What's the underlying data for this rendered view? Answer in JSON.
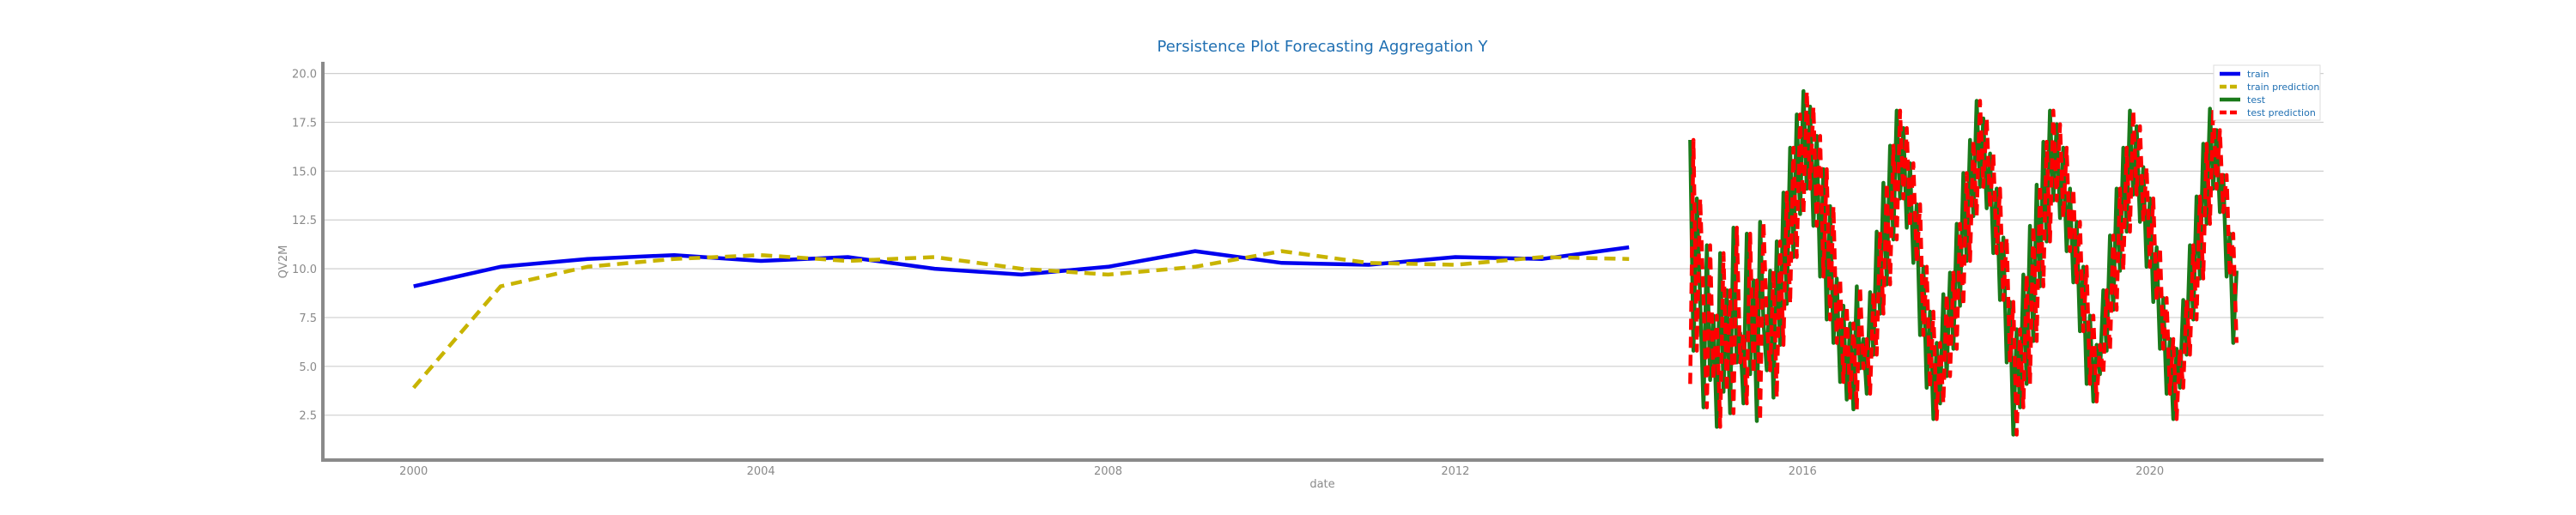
{
  "chart_data": {
    "type": "line",
    "title": "Persistence Plot Forecasting Aggregation Y",
    "xlabel": "date",
    "ylabel": "QV2M",
    "x_type": "date",
    "xlim": [
      "1998-12-15",
      "2022-01-01"
    ],
    "ylim": [
      0.2,
      20.6
    ],
    "x_ticks": [
      {
        "value": "2000-01-01",
        "label": "2000"
      },
      {
        "value": "2004-01-01",
        "label": "2004"
      },
      {
        "value": "2008-01-01",
        "label": "2008"
      },
      {
        "value": "2012-01-01",
        "label": "2012"
      },
      {
        "value": "2016-01-01",
        "label": "2016"
      },
      {
        "value": "2020-01-01",
        "label": "2020"
      }
    ],
    "y_ticks": [
      2.5,
      5.0,
      7.5,
      10.0,
      12.5,
      15.0,
      17.5,
      20.0
    ],
    "y_tick_labels": [
      "2.5",
      "5.0",
      "7.5",
      "10.0",
      "12.5",
      "15.0",
      "17.5",
      "20.0"
    ],
    "grid": "horizontal",
    "legend_position": "top-right",
    "series": [
      {
        "name": "train",
        "color": "#0000ee",
        "style": "solid",
        "x": [
          "2000-01-01",
          "2001-01-01",
          "2002-01-01",
          "2003-01-01",
          "2004-01-01",
          "2005-01-01",
          "2006-01-01",
          "2007-01-01",
          "2008-01-01",
          "2009-01-01",
          "2010-01-01",
          "2011-01-01",
          "2012-01-01",
          "2013-01-01",
          "2014-01-01"
        ],
        "y": [
          9.1,
          10.1,
          10.5,
          10.7,
          10.4,
          10.6,
          10.0,
          9.7,
          10.1,
          10.9,
          10.3,
          10.2,
          10.6,
          10.5,
          11.1
        ]
      },
      {
        "name": "train prediction",
        "color": "#c8b400",
        "style": "dashed",
        "x": [
          "2000-01-01",
          "2001-01-01",
          "2002-01-01",
          "2003-01-01",
          "2004-01-01",
          "2005-01-01",
          "2006-01-01",
          "2007-01-01",
          "2008-01-01",
          "2009-01-01",
          "2010-01-01",
          "2011-01-01",
          "2012-01-01",
          "2013-01-01",
          "2014-01-01"
        ],
        "y": [
          3.9,
          9.1,
          10.1,
          10.5,
          10.7,
          10.4,
          10.6,
          10.0,
          9.7,
          10.1,
          10.9,
          10.3,
          10.2,
          10.6,
          10.5
        ]
      },
      {
        "name": "test",
        "color": "#1a7a1a",
        "style": "solid",
        "x_start": "2014-09-15",
        "x_end": "2020-12-31",
        "y": [
          16.6,
          5.8,
          13.6,
          8.4,
          2.9,
          11.2,
          4.3,
          7.6,
          1.9,
          10.8,
          3.7,
          8.9,
          2.6,
          12.1,
          5.2,
          6.7,
          3.1,
          11.8,
          4.6,
          9.4,
          2.2,
          12.4,
          7.3,
          4.8,
          9.9,
          3.4,
          11.4,
          6.1,
          13.9,
          8.2,
          16.2,
          10.6,
          17.9,
          12.8,
          19.1,
          14.1,
          18.3,
          12.2,
          16.8,
          9.6,
          15.1,
          7.4,
          13.2,
          6.2,
          9.5,
          4.2,
          8.1,
          3.3,
          7.2,
          2.8,
          9.1,
          4.9,
          6.4,
          3.6,
          8.8,
          5.6,
          11.9,
          7.7,
          14.4,
          9.2,
          16.3,
          11.5,
          18.1,
          13.6,
          17.2,
          12.1,
          15.4,
          10.3,
          13.3,
          6.6,
          10.1,
          3.9,
          7.8,
          2.3,
          6.2,
          3.1,
          8.7,
          4.5,
          9.8,
          5.9,
          12.3,
          8.1,
          14.9,
          10.4,
          16.6,
          12.7,
          18.6,
          14.2,
          17.7,
          13.1,
          15.9,
          10.8,
          14.1,
          8.4,
          11.6,
          5.2,
          8.3,
          1.5,
          6.9,
          2.9,
          9.7,
          4.1,
          12.2,
          6.3,
          14.3,
          9.1,
          16.5,
          11.4,
          18.1,
          13.5,
          17.4,
          12.6,
          16.2,
          10.9,
          14.1,
          9.3,
          12.4,
          6.8,
          10.1,
          4.1,
          7.6,
          3.2,
          6.1,
          4.6,
          8.9,
          5.8,
          11.7,
          7.9,
          14.1,
          9.9,
          16.2,
          11.9,
          18.1,
          13.8,
          17.3,
          12.4,
          15.2,
          10.1,
          13.6,
          8.3,
          11.1,
          5.9,
          8.5,
          3.6,
          6.4,
          2.3,
          5.9,
          3.9,
          8.4,
          5.6,
          11.2,
          7.4,
          13.7,
          9.5,
          16.4,
          12.3,
          18.2,
          14.1,
          17.1,
          12.9,
          14.8,
          9.6,
          11.8,
          6.2,
          9.9
        ]
      },
      {
        "name": "test prediction",
        "color": "#ff0000",
        "style": "dashed",
        "x_start": "2014-09-15",
        "x_end": "2020-12-31",
        "y": [
          4.1,
          16.6,
          5.8,
          13.6,
          8.4,
          2.9,
          11.2,
          4.3,
          7.6,
          1.9,
          10.8,
          3.7,
          8.9,
          2.6,
          12.1,
          5.2,
          6.7,
          3.1,
          11.8,
          4.6,
          9.4,
          2.2,
          12.4,
          7.3,
          4.8,
          9.9,
          3.4,
          11.4,
          6.1,
          13.9,
          8.2,
          16.2,
          10.6,
          17.9,
          12.8,
          19.1,
          14.1,
          18.3,
          12.2,
          16.8,
          9.6,
          15.1,
          7.4,
          13.2,
          6.2,
          9.5,
          4.2,
          8.1,
          3.3,
          7.2,
          2.8,
          9.1,
          4.9,
          6.4,
          3.6,
          8.8,
          5.6,
          11.9,
          7.7,
          14.4,
          9.2,
          16.3,
          11.5,
          18.1,
          13.6,
          17.2,
          12.1,
          15.4,
          10.3,
          13.3,
          6.6,
          10.1,
          3.9,
          7.8,
          2.3,
          6.2,
          3.1,
          8.7,
          4.5,
          9.8,
          5.9,
          12.3,
          8.1,
          14.9,
          10.4,
          16.6,
          12.7,
          18.6,
          14.2,
          17.7,
          13.1,
          15.9,
          10.8,
          14.1,
          8.4,
          11.6,
          5.2,
          8.3,
          1.5,
          6.9,
          2.9,
          9.7,
          4.1,
          12.2,
          6.3,
          14.3,
          9.1,
          16.5,
          11.4,
          18.1,
          13.5,
          17.4,
          12.6,
          16.2,
          10.9,
          14.1,
          9.3,
          12.4,
          6.8,
          10.1,
          4.1,
          7.6,
          3.2,
          6.1,
          4.6,
          8.9,
          5.8,
          11.7,
          7.9,
          14.1,
          9.9,
          16.2,
          11.9,
          18.1,
          13.8,
          17.3,
          12.4,
          15.2,
          10.1,
          13.6,
          8.3,
          11.1,
          5.9,
          8.5,
          3.6,
          6.4,
          2.3,
          5.9,
          3.9,
          8.4,
          5.6,
          11.2,
          7.4,
          13.7,
          9.5,
          16.4,
          12.3,
          18.2,
          14.1,
          17.1,
          12.9,
          14.8,
          9.6,
          11.8,
          6.2
        ]
      }
    ]
  }
}
